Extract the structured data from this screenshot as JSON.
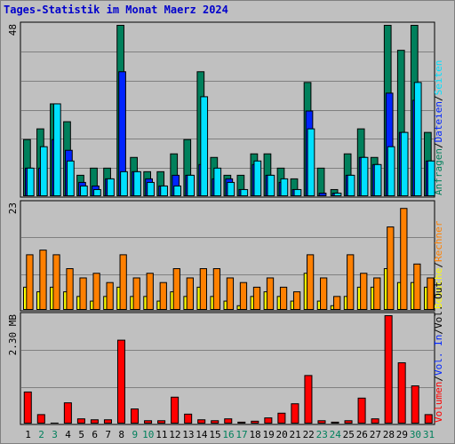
{
  "title": "Tages-Statistik im Monat Maerz 2024",
  "colors": {
    "anfragen": "#00805c",
    "dateien": "#0024ff",
    "seiten": "#00e0ff",
    "besuche": "#ffff00",
    "rechner": "#ff8000",
    "volumen": "#ff0000",
    "weekend": "#00805c",
    "weekday": "#000000",
    "separator_label": "#000000"
  },
  "chart_data": [
    {
      "type": "bar",
      "panel": "top",
      "ymax_label": "48",
      "ylim": [
        0,
        48
      ],
      "categories": [
        "1",
        "2",
        "3",
        "4",
        "5",
        "6",
        "7",
        "8",
        "9",
        "10",
        "11",
        "12",
        "13",
        "14",
        "15",
        "16",
        "17",
        "18",
        "19",
        "20",
        "21",
        "22",
        "23",
        "24",
        "25",
        "26",
        "27",
        "28",
        "29",
        "30",
        "31"
      ],
      "right_labels": [
        {
          "text": "Anfragen",
          "color": "#00805c"
        },
        {
          "text": "/",
          "color": "#000000"
        },
        {
          "text": "Dateien",
          "color": "#0024ff"
        },
        {
          "text": "/",
          "color": "#000000"
        },
        {
          "text": "Seiten",
          "color": "#00e0ff"
        }
      ],
      "series": [
        {
          "name": "Anfragen",
          "values": [
            16,
            19,
            26,
            21,
            6,
            8,
            8,
            48,
            11,
            7,
            7,
            12,
            16,
            35,
            11,
            6,
            6,
            12,
            12,
            8,
            5,
            32,
            8,
            2,
            12,
            19,
            11,
            48,
            41,
            48,
            18
          ]
        },
        {
          "name": "Dateien",
          "values": [
            8,
            8,
            16,
            13,
            4,
            3,
            5,
            35,
            7,
            5,
            3,
            6,
            6,
            9,
            5,
            5,
            2,
            9,
            6,
            4,
            2,
            24,
            1,
            1,
            6,
            11,
            9,
            29,
            18,
            27,
            10
          ]
        },
        {
          "name": "Seiten",
          "values": [
            8,
            14,
            26,
            10,
            3,
            2,
            5,
            7,
            7,
            4,
            3,
            3,
            6,
            28,
            8,
            4,
            2,
            10,
            6,
            5,
            2,
            19,
            0,
            1,
            6,
            11,
            9,
            14,
            18,
            32,
            10
          ]
        }
      ]
    },
    {
      "type": "bar",
      "panel": "middle",
      "ymax_label": "23",
      "ylim": [
        0,
        23
      ],
      "categories": [
        "1",
        "2",
        "3",
        "4",
        "5",
        "6",
        "7",
        "8",
        "9",
        "10",
        "11",
        "12",
        "13",
        "14",
        "15",
        "16",
        "17",
        "18",
        "19",
        "20",
        "21",
        "22",
        "23",
        "24",
        "25",
        "26",
        "27",
        "28",
        "29",
        "30",
        "31"
      ],
      "right_labels": [
        {
          "text": "Besuche",
          "color": "#ffff00"
        },
        {
          "text": "/",
          "color": "#000000"
        },
        {
          "text": "Rechner",
          "color": "#ff8000"
        }
      ],
      "series": [
        {
          "name": "Besuche",
          "values": [
            5,
            4,
            5,
            4,
            3,
            2,
            3,
            5,
            3,
            3,
            2,
            4,
            3,
            5,
            3,
            2,
            1,
            3,
            4,
            3,
            2,
            8,
            2,
            1,
            3,
            5,
            5,
            9,
            6,
            6,
            5
          ]
        },
        {
          "name": "Rechner",
          "values": [
            12,
            13,
            12,
            9,
            7,
            8,
            6,
            12,
            7,
            8,
            6,
            9,
            7,
            9,
            9,
            7,
            6,
            5,
            7,
            5,
            4,
            12,
            7,
            3,
            12,
            8,
            7,
            18,
            22,
            10,
            7
          ]
        }
      ]
    },
    {
      "type": "bar",
      "panel": "bottom",
      "ymax_label": "2.30 MB",
      "ylim": [
        0,
        2.3
      ],
      "categories": [
        "1",
        "2",
        "3",
        "4",
        "5",
        "6",
        "7",
        "8",
        "9",
        "10",
        "11",
        "12",
        "13",
        "14",
        "15",
        "16",
        "17",
        "18",
        "19",
        "20",
        "21",
        "22",
        "23",
        "24",
        "25",
        "26",
        "27",
        "28",
        "29",
        "30",
        "31"
      ],
      "right_labels": [
        {
          "text": "Volumen",
          "color": "#ff0000"
        },
        {
          "text": "/",
          "color": "#000000"
        },
        {
          "text": "Vol. In",
          "color": "#0024ff"
        },
        {
          "text": "/",
          "color": "#000000"
        },
        {
          "text": "Vol. Out",
          "color": "#000000"
        }
      ],
      "series": [
        {
          "name": "Volumen",
          "values": [
            0.68,
            0.2,
            0.02,
            0.45,
            0.11,
            0.09,
            0.09,
            1.78,
            0.32,
            0.07,
            0.07,
            0.57,
            0.21,
            0.09,
            0.07,
            0.11,
            0.04,
            0.06,
            0.13,
            0.23,
            0.43,
            1.03,
            0.07,
            0.04,
            0.07,
            0.55,
            0.11,
            2.3,
            1.3,
            0.81,
            0.2
          ]
        }
      ]
    }
  ],
  "x_axis": {
    "labels": [
      "1",
      "2",
      "3",
      "4",
      "5",
      "6",
      "7",
      "8",
      "9",
      "10",
      "11",
      "12",
      "13",
      "14",
      "15",
      "16",
      "17",
      "18",
      "19",
      "20",
      "21",
      "22",
      "23",
      "24",
      "25",
      "26",
      "27",
      "28",
      "29",
      "30",
      "31"
    ],
    "weekend_days": [
      "2",
      "3",
      "9",
      "10",
      "16",
      "17",
      "23",
      "24",
      "30",
      "31"
    ]
  }
}
